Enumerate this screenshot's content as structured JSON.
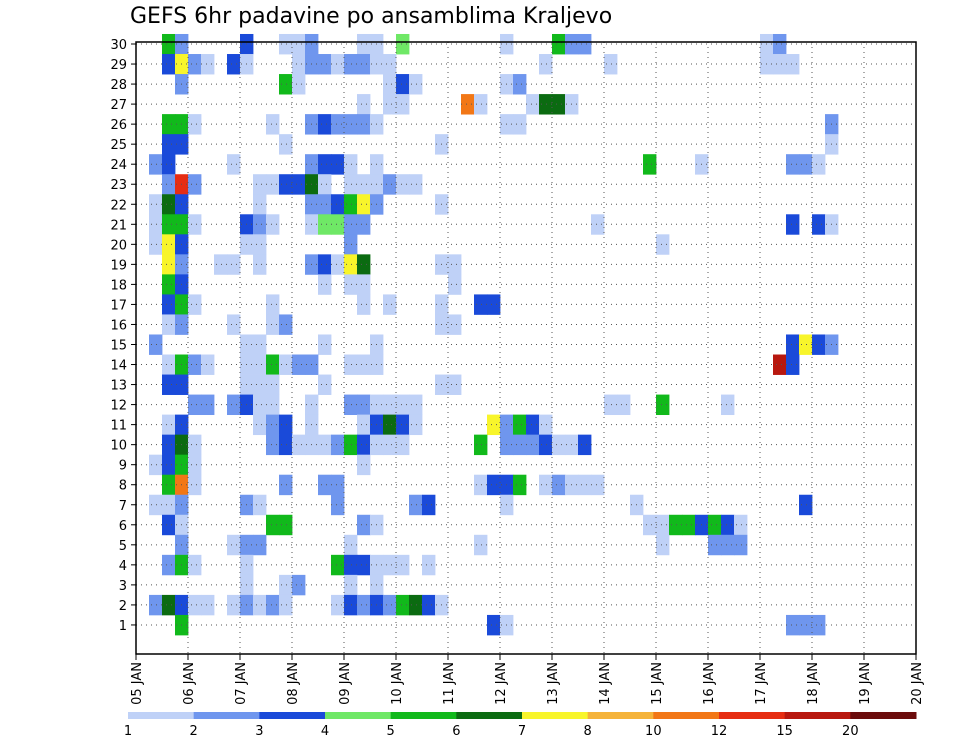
{
  "chart_data": {
    "type": "heatmap",
    "title": "GEFS 6hr padavine po ansamblima Kraljevo",
    "xlabel": "",
    "ylabel": "",
    "x_ticks": [
      "05 JAN",
      "06 JAN",
      "07 JAN",
      "08 JAN",
      "09 JAN",
      "10 JAN",
      "11 JAN",
      "12 JAN",
      "13 JAN",
      "14 JAN",
      "15 JAN",
      "16 JAN",
      "17 JAN",
      "18 JAN",
      "19 JAN",
      "20 JAN"
    ],
    "y_ticks": [
      1,
      2,
      3,
      4,
      5,
      6,
      7,
      8,
      9,
      10,
      11,
      12,
      13,
      14,
      15,
      16,
      17,
      18,
      19,
      20,
      21,
      22,
      23,
      24,
      25,
      26,
      27,
      28,
      29,
      30
    ],
    "members_range": [
      0,
      30
    ],
    "time_step_hours": 6,
    "grid": "dotted",
    "colorbar": {
      "labels": [
        "1",
        "2",
        "3",
        "4",
        "5",
        "6",
        "7",
        "8",
        "10",
        "12",
        "15",
        "20"
      ],
      "colors": [
        "#bfd1f7",
        "#6f96ee",
        "#1a4ad9",
        "#6fe866",
        "#11b91b",
        "#0b6b11",
        "#f8f52b",
        "#f5b33a",
        "#f27716",
        "#e62d12",
        "#b8180f",
        "#6b0b0b"
      ]
    },
    "cells": [
      [
        2,
        30,
        5
      ],
      [
        3,
        30,
        2
      ],
      [
        8,
        30,
        3
      ],
      [
        11,
        30,
        1
      ],
      [
        12,
        30,
        1
      ],
      [
        13,
        30,
        2
      ],
      [
        17,
        30,
        1
      ],
      [
        18,
        30,
        1
      ],
      [
        20,
        30,
        4
      ],
      [
        28,
        30,
        1
      ],
      [
        32,
        30,
        5
      ],
      [
        33,
        30,
        2
      ],
      [
        34,
        30,
        2
      ],
      [
        48,
        30,
        1
      ],
      [
        49,
        30,
        2
      ],
      [
        2,
        29,
        3
      ],
      [
        3,
        29,
        7
      ],
      [
        4,
        29,
        2
      ],
      [
        5,
        29,
        1
      ],
      [
        7,
        29,
        3
      ],
      [
        8,
        29,
        1
      ],
      [
        12,
        29,
        1
      ],
      [
        13,
        29,
        2
      ],
      [
        14,
        29,
        2
      ],
      [
        15,
        29,
        1
      ],
      [
        16,
        29,
        2
      ],
      [
        17,
        29,
        2
      ],
      [
        18,
        29,
        1
      ],
      [
        19,
        29,
        1
      ],
      [
        31,
        29,
        1
      ],
      [
        36,
        29,
        1
      ],
      [
        48,
        29,
        1
      ],
      [
        49,
        29,
        1
      ],
      [
        50,
        29,
        1
      ],
      [
        3,
        28,
        2
      ],
      [
        11,
        28,
        5
      ],
      [
        12,
        28,
        1
      ],
      [
        19,
        28,
        1
      ],
      [
        20,
        28,
        3
      ],
      [
        21,
        28,
        1
      ],
      [
        28,
        28,
        1
      ],
      [
        29,
        28,
        2
      ],
      [
        17,
        27,
        1
      ],
      [
        19,
        27,
        1
      ],
      [
        20,
        27,
        1
      ],
      [
        25,
        27,
        9
      ],
      [
        26,
        27,
        1
      ],
      [
        30,
        27,
        1
      ],
      [
        31,
        27,
        6
      ],
      [
        32,
        27,
        6
      ],
      [
        33,
        27,
        1
      ],
      [
        2,
        26,
        5
      ],
      [
        3,
        26,
        5
      ],
      [
        4,
        26,
        1
      ],
      [
        10,
        26,
        1
      ],
      [
        13,
        26,
        2
      ],
      [
        14,
        26,
        3
      ],
      [
        15,
        26,
        2
      ],
      [
        16,
        26,
        2
      ],
      [
        17,
        26,
        2
      ],
      [
        18,
        26,
        1
      ],
      [
        28,
        26,
        1
      ],
      [
        29,
        26,
        1
      ],
      [
        53,
        26,
        2
      ],
      [
        3,
        25,
        3
      ],
      [
        2,
        25,
        3
      ],
      [
        11,
        25,
        1
      ],
      [
        23,
        25,
        1
      ],
      [
        53,
        25,
        1
      ],
      [
        1,
        24,
        2
      ],
      [
        2,
        24,
        3
      ],
      [
        7,
        24,
        1
      ],
      [
        13,
        24,
        2
      ],
      [
        14,
        24,
        3
      ],
      [
        15,
        24,
        3
      ],
      [
        16,
        24,
        1
      ],
      [
        18,
        24,
        1
      ],
      [
        39,
        24,
        5
      ],
      [
        43,
        24,
        1
      ],
      [
        50,
        24,
        2
      ],
      [
        51,
        24,
        2
      ],
      [
        52,
        24,
        1
      ],
      [
        2,
        23,
        2
      ],
      [
        3,
        23,
        10
      ],
      [
        4,
        23,
        2
      ],
      [
        9,
        23,
        1
      ],
      [
        10,
        23,
        1
      ],
      [
        11,
        23,
        3
      ],
      [
        12,
        23,
        3
      ],
      [
        13,
        23,
        6
      ],
      [
        14,
        23,
        1
      ],
      [
        16,
        23,
        1
      ],
      [
        17,
        23,
        1
      ],
      [
        18,
        23,
        1
      ],
      [
        19,
        23,
        2
      ],
      [
        20,
        23,
        1
      ],
      [
        21,
        23,
        1
      ],
      [
        1,
        22,
        1
      ],
      [
        2,
        22,
        6
      ],
      [
        3,
        22,
        3
      ],
      [
        9,
        22,
        1
      ],
      [
        13,
        22,
        2
      ],
      [
        14,
        22,
        2
      ],
      [
        15,
        22,
        3
      ],
      [
        16,
        22,
        5
      ],
      [
        17,
        22,
        7
      ],
      [
        18,
        22,
        2
      ],
      [
        23,
        22,
        1
      ],
      [
        1,
        21,
        1
      ],
      [
        2,
        21,
        5
      ],
      [
        3,
        21,
        5
      ],
      [
        4,
        21,
        1
      ],
      [
        8,
        21,
        3
      ],
      [
        9,
        21,
        2
      ],
      [
        10,
        21,
        1
      ],
      [
        13,
        21,
        1
      ],
      [
        14,
        21,
        4
      ],
      [
        15,
        21,
        4
      ],
      [
        16,
        21,
        2
      ],
      [
        17,
        21,
        2
      ],
      [
        35,
        21,
        1
      ],
      [
        50,
        21,
        3
      ],
      [
        52,
        21,
        3
      ],
      [
        53,
        21,
        1
      ],
      [
        1,
        20,
        1
      ],
      [
        2,
        20,
        7
      ],
      [
        3,
        20,
        3
      ],
      [
        8,
        20,
        1
      ],
      [
        9,
        20,
        1
      ],
      [
        16,
        20,
        2
      ],
      [
        40,
        20,
        1
      ],
      [
        2,
        19,
        7
      ],
      [
        3,
        19,
        2
      ],
      [
        6,
        19,
        1
      ],
      [
        7,
        19,
        1
      ],
      [
        9,
        19,
        1
      ],
      [
        13,
        19,
        2
      ],
      [
        14,
        19,
        3
      ],
      [
        15,
        19,
        1
      ],
      [
        16,
        19,
        7
      ],
      [
        17,
        19,
        6
      ],
      [
        23,
        19,
        1
      ],
      [
        24,
        19,
        1
      ],
      [
        2,
        18,
        5
      ],
      [
        3,
        18,
        3
      ],
      [
        14,
        18,
        1
      ],
      [
        16,
        18,
        1
      ],
      [
        17,
        18,
        1
      ],
      [
        24,
        18,
        1
      ],
      [
        2,
        17,
        3
      ],
      [
        3,
        17,
        5
      ],
      [
        4,
        17,
        1
      ],
      [
        10,
        17,
        1
      ],
      [
        17,
        17,
        1
      ],
      [
        19,
        17,
        1
      ],
      [
        23,
        17,
        1
      ],
      [
        26,
        17,
        3
      ],
      [
        27,
        17,
        3
      ],
      [
        2,
        16,
        1
      ],
      [
        3,
        16,
        2
      ],
      [
        7,
        16,
        1
      ],
      [
        10,
        16,
        1
      ],
      [
        11,
        16,
        2
      ],
      [
        23,
        16,
        1
      ],
      [
        24,
        16,
        1
      ],
      [
        1,
        15,
        2
      ],
      [
        8,
        15,
        1
      ],
      [
        9,
        15,
        1
      ],
      [
        14,
        15,
        1
      ],
      [
        18,
        15,
        1
      ],
      [
        50,
        15,
        3
      ],
      [
        51,
        15,
        7
      ],
      [
        52,
        15,
        3
      ],
      [
        53,
        15,
        2
      ],
      [
        2,
        14,
        1
      ],
      [
        3,
        14,
        5
      ],
      [
        4,
        14,
        2
      ],
      [
        5,
        14,
        1
      ],
      [
        8,
        14,
        1
      ],
      [
        9,
        14,
        1
      ],
      [
        10,
        14,
        5
      ],
      [
        11,
        14,
        1
      ],
      [
        12,
        14,
        2
      ],
      [
        13,
        14,
        2
      ],
      [
        16,
        14,
        1
      ],
      [
        17,
        14,
        1
      ],
      [
        18,
        14,
        1
      ],
      [
        49,
        14,
        11
      ],
      [
        50,
        14,
        3
      ],
      [
        2,
        13,
        3
      ],
      [
        3,
        13,
        3
      ],
      [
        8,
        13,
        1
      ],
      [
        9,
        13,
        1
      ],
      [
        10,
        13,
        1
      ],
      [
        14,
        13,
        1
      ],
      [
        23,
        13,
        1
      ],
      [
        24,
        13,
        1
      ],
      [
        4,
        12,
        2
      ],
      [
        5,
        12,
        2
      ],
      [
        7,
        12,
        2
      ],
      [
        8,
        12,
        3
      ],
      [
        9,
        12,
        1
      ],
      [
        10,
        12,
        1
      ],
      [
        13,
        12,
        1
      ],
      [
        16,
        12,
        2
      ],
      [
        17,
        12,
        2
      ],
      [
        18,
        12,
        1
      ],
      [
        19,
        12,
        1
      ],
      [
        20,
        12,
        1
      ],
      [
        21,
        12,
        1
      ],
      [
        36,
        12,
        1
      ],
      [
        37,
        12,
        1
      ],
      [
        40,
        12,
        5
      ],
      [
        45,
        12,
        1
      ],
      [
        2,
        11,
        1
      ],
      [
        3,
        11,
        3
      ],
      [
        9,
        11,
        1
      ],
      [
        10,
        11,
        2
      ],
      [
        11,
        11,
        3
      ],
      [
        13,
        11,
        1
      ],
      [
        17,
        11,
        1
      ],
      [
        18,
        11,
        3
      ],
      [
        19,
        11,
        6
      ],
      [
        20,
        11,
        3
      ],
      [
        21,
        11,
        1
      ],
      [
        27,
        11,
        7
      ],
      [
        28,
        11,
        2
      ],
      [
        29,
        11,
        5
      ],
      [
        30,
        11,
        3
      ],
      [
        31,
        11,
        1
      ],
      [
        2,
        10,
        3
      ],
      [
        3,
        10,
        6
      ],
      [
        4,
        10,
        1
      ],
      [
        10,
        10,
        2
      ],
      [
        11,
        10,
        3
      ],
      [
        12,
        10,
        1
      ],
      [
        13,
        10,
        1
      ],
      [
        14,
        10,
        1
      ],
      [
        15,
        10,
        2
      ],
      [
        16,
        10,
        5
      ],
      [
        17,
        10,
        3
      ],
      [
        18,
        10,
        1
      ],
      [
        19,
        10,
        1
      ],
      [
        20,
        10,
        1
      ],
      [
        26,
        10,
        5
      ],
      [
        28,
        10,
        2
      ],
      [
        29,
        10,
        2
      ],
      [
        30,
        10,
        2
      ],
      [
        31,
        10,
        3
      ],
      [
        32,
        10,
        1
      ],
      [
        33,
        10,
        1
      ],
      [
        34,
        10,
        3
      ],
      [
        1,
        9,
        1
      ],
      [
        2,
        9,
        3
      ],
      [
        3,
        9,
        5
      ],
      [
        4,
        9,
        1
      ],
      [
        17,
        9,
        1
      ],
      [
        2,
        8,
        5
      ],
      [
        3,
        8,
        9
      ],
      [
        4,
        8,
        1
      ],
      [
        11,
        8,
        2
      ],
      [
        14,
        8,
        2
      ],
      [
        15,
        8,
        2
      ],
      [
        26,
        8,
        1
      ],
      [
        27,
        8,
        3
      ],
      [
        28,
        8,
        3
      ],
      [
        29,
        8,
        5
      ],
      [
        31,
        8,
        1
      ],
      [
        32,
        8,
        2
      ],
      [
        33,
        8,
        1
      ],
      [
        34,
        8,
        1
      ],
      [
        35,
        8,
        1
      ],
      [
        1,
        7,
        1
      ],
      [
        2,
        7,
        1
      ],
      [
        3,
        7,
        2
      ],
      [
        8,
        7,
        2
      ],
      [
        9,
        7,
        1
      ],
      [
        15,
        7,
        2
      ],
      [
        21,
        7,
        2
      ],
      [
        22,
        7,
        3
      ],
      [
        28,
        7,
        1
      ],
      [
        38,
        7,
        1
      ],
      [
        51,
        7,
        3
      ],
      [
        2,
        6,
        3
      ],
      [
        3,
        6,
        1
      ],
      [
        10,
        6,
        5
      ],
      [
        11,
        6,
        5
      ],
      [
        17,
        6,
        2
      ],
      [
        18,
        6,
        1
      ],
      [
        39,
        6,
        1
      ],
      [
        40,
        6,
        1
      ],
      [
        41,
        6,
        5
      ],
      [
        42,
        6,
        5
      ],
      [
        43,
        6,
        3
      ],
      [
        44,
        6,
        5
      ],
      [
        45,
        6,
        3
      ],
      [
        46,
        6,
        1
      ],
      [
        3,
        5,
        2
      ],
      [
        7,
        5,
        1
      ],
      [
        8,
        5,
        2
      ],
      [
        9,
        5,
        2
      ],
      [
        16,
        5,
        1
      ],
      [
        26,
        5,
        1
      ],
      [
        40,
        5,
        1
      ],
      [
        44,
        5,
        2
      ],
      [
        45,
        5,
        2
      ],
      [
        46,
        5,
        2
      ],
      [
        2,
        4,
        2
      ],
      [
        3,
        4,
        5
      ],
      [
        4,
        4,
        1
      ],
      [
        8,
        4,
        1
      ],
      [
        15,
        4,
        5
      ],
      [
        16,
        4,
        3
      ],
      [
        17,
        4,
        3
      ],
      [
        18,
        4,
        1
      ],
      [
        19,
        4,
        1
      ],
      [
        20,
        4,
        1
      ],
      [
        22,
        4,
        1
      ],
      [
        8,
        3,
        1
      ],
      [
        11,
        3,
        1
      ],
      [
        12,
        3,
        2
      ],
      [
        16,
        3,
        1
      ],
      [
        18,
        3,
        1
      ],
      [
        1,
        2,
        2
      ],
      [
        2,
        2,
        6
      ],
      [
        3,
        2,
        3
      ],
      [
        4,
        2,
        1
      ],
      [
        5,
        2,
        1
      ],
      [
        7,
        2,
        1
      ],
      [
        8,
        2,
        2
      ],
      [
        9,
        2,
        1
      ],
      [
        10,
        2,
        2
      ],
      [
        11,
        2,
        1
      ],
      [
        15,
        2,
        1
      ],
      [
        16,
        2,
        3
      ],
      [
        17,
        2,
        2
      ],
      [
        18,
        2,
        3
      ],
      [
        19,
        2,
        2
      ],
      [
        20,
        2,
        5
      ],
      [
        21,
        2,
        6
      ],
      [
        22,
        2,
        3
      ],
      [
        23,
        2,
        1
      ],
      [
        3,
        1,
        5
      ],
      [
        27,
        1,
        3
      ],
      [
        28,
        1,
        1
      ],
      [
        50,
        1,
        2
      ],
      [
        51,
        1,
        2
      ],
      [
        52,
        1,
        2
      ]
    ]
  }
}
